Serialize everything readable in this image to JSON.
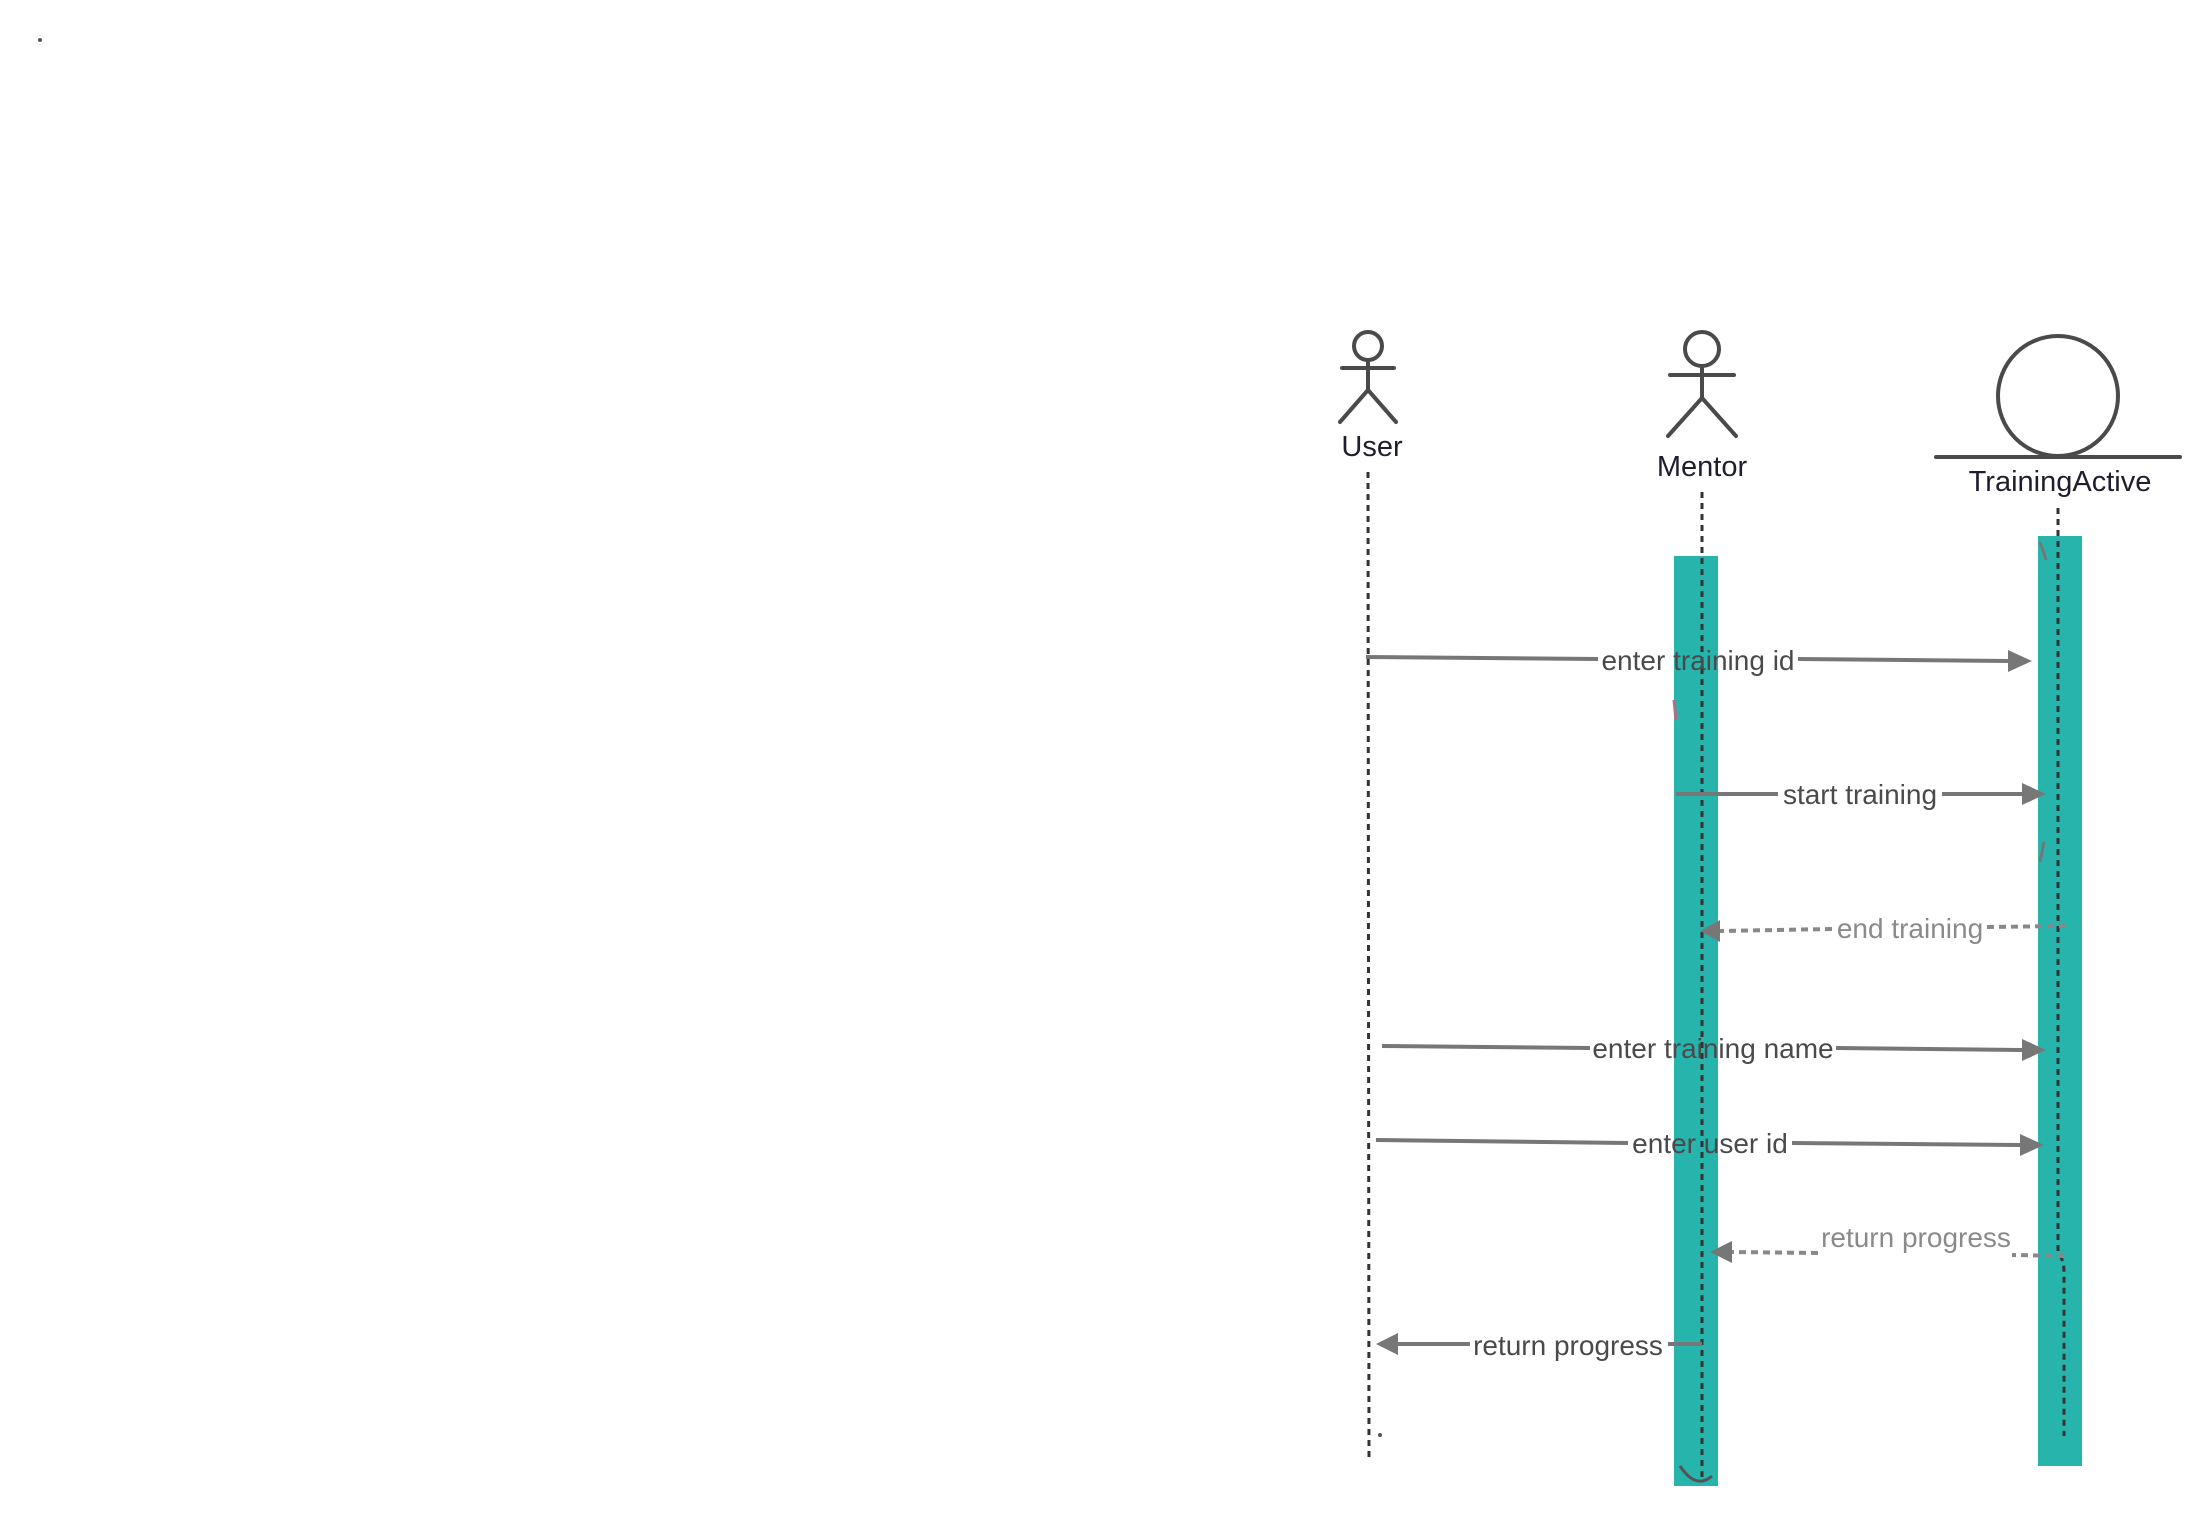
{
  "participants": [
    {
      "id": "user",
      "name": "User",
      "kind": "actor"
    },
    {
      "id": "mentor",
      "name": "Mentor",
      "kind": "actor"
    },
    {
      "id": "training_active",
      "name": "TrainingActive",
      "kind": "entity"
    }
  ],
  "messages": [
    {
      "id": "m1",
      "label": "enter training id",
      "from": "user",
      "to": "training_active",
      "style": "solid"
    },
    {
      "id": "m2",
      "label": "start training",
      "from": "mentor",
      "to": "training_active",
      "style": "solid"
    },
    {
      "id": "m3",
      "label": "end training",
      "from": "training_active",
      "to": "mentor",
      "style": "dashed"
    },
    {
      "id": "m4",
      "label": "enter training name",
      "from": "user",
      "to": "training_active",
      "style": "solid"
    },
    {
      "id": "m5",
      "label": "enter user id",
      "from": "user",
      "to": "training_active",
      "style": "solid"
    },
    {
      "id": "m6",
      "label": "return progress",
      "from": "training_active",
      "to": "mentor",
      "style": "dashed"
    },
    {
      "id": "m7",
      "label": "return progress",
      "from": "mentor",
      "to": "user",
      "style": "solid"
    }
  ],
  "colors": {
    "activation": "#20b2aa",
    "message_line": "#777777",
    "lifeline": "#333333",
    "actor_stroke": "#4a4a4a"
  }
}
